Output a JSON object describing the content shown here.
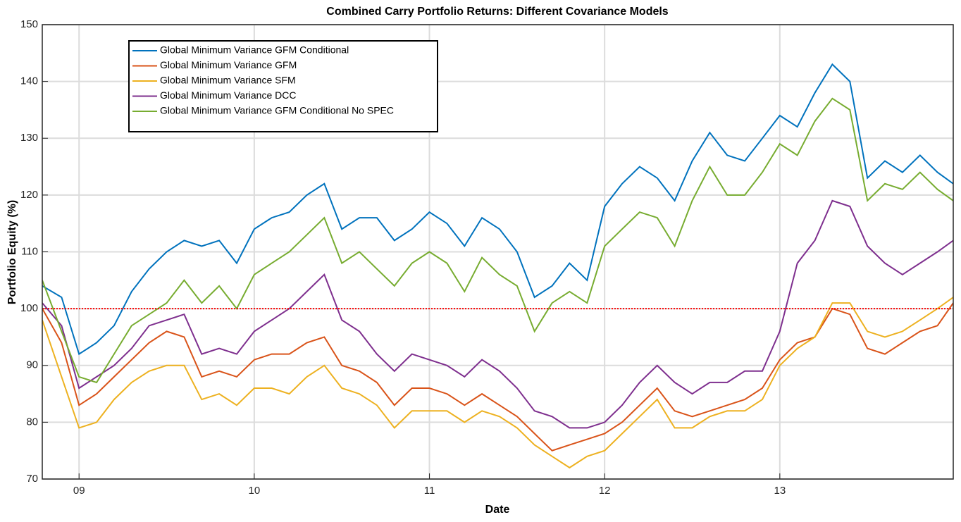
{
  "chart_data": {
    "type": "line",
    "title": "Combined Carry Portfolio Returns: Different Covariance Models",
    "x_label": "Date",
    "y_label": "Portfolio Equity (%)",
    "x": [
      8.79,
      8.9,
      9.0,
      9.1,
      9.2,
      9.3,
      9.4,
      9.5,
      9.6,
      9.7,
      9.8,
      9.9,
      10.0,
      10.1,
      10.2,
      10.3,
      10.4,
      10.5,
      10.6,
      10.7,
      10.8,
      10.9,
      11.0,
      11.1,
      11.2,
      11.3,
      11.4,
      11.5,
      11.6,
      11.7,
      11.8,
      11.9,
      12.0,
      12.1,
      12.2,
      12.3,
      12.4,
      12.5,
      12.6,
      12.7,
      12.8,
      12.9,
      13.0,
      13.1,
      13.2,
      13.3,
      13.4,
      13.5,
      13.6,
      13.7,
      13.8,
      13.9,
      13.99
    ],
    "series": [
      {
        "name": "Global Minimum Variance GFM Conditional",
        "color": "#0072bd",
        "values": [
          104,
          102,
          92,
          94,
          97,
          103,
          107,
          110,
          112,
          111,
          112,
          108,
          114,
          116,
          117,
          120,
          122,
          114,
          116,
          116,
          112,
          114,
          117,
          115,
          111,
          116,
          114,
          110,
          102,
          104,
          108,
          105,
          118,
          122,
          125,
          123,
          119,
          126,
          131,
          127,
          126,
          130,
          134,
          132,
          138,
          143,
          140,
          123,
          126,
          124,
          127,
          124,
          122
        ]
      },
      {
        "name": "Global Minimum Variance GFM",
        "color": "#d95319",
        "values": [
          100,
          94,
          83,
          85,
          88,
          91,
          94,
          96,
          95,
          88,
          89,
          88,
          91,
          92,
          92,
          94,
          95,
          90,
          89,
          87,
          83,
          86,
          86,
          85,
          83,
          85,
          83,
          81,
          78,
          75,
          76,
          77,
          78,
          80,
          83,
          86,
          82,
          81,
          82,
          83,
          84,
          86,
          91,
          94,
          95,
          100,
          99,
          93,
          92,
          94,
          96,
          97,
          101
        ]
      },
      {
        "name": "Global Minimum Variance SFM",
        "color": "#edb120",
        "values": [
          98,
          88,
          79,
          80,
          84,
          87,
          89,
          90,
          90,
          84,
          85,
          83,
          86,
          86,
          85,
          88,
          90,
          86,
          85,
          83,
          79,
          82,
          82,
          82,
          80,
          82,
          81,
          79,
          76,
          74,
          72,
          74,
          75,
          78,
          81,
          84,
          79,
          79,
          81,
          82,
          82,
          84,
          90,
          93,
          95,
          101,
          101,
          96,
          95,
          96,
          98,
          100,
          102
        ]
      },
      {
        "name": "Global Minimum Variance DCC",
        "color": "#7e2f8e",
        "values": [
          101,
          97,
          86,
          88,
          90,
          93,
          97,
          98,
          99,
          92,
          93,
          92,
          96,
          98,
          100,
          103,
          106,
          98,
          96,
          92,
          89,
          92,
          91,
          90,
          88,
          91,
          89,
          86,
          82,
          81,
          79,
          79,
          80,
          83,
          87,
          90,
          87,
          85,
          87,
          87,
          89,
          89,
          96,
          108,
          112,
          119,
          118,
          111,
          108,
          106,
          108,
          110,
          112
        ]
      },
      {
        "name": "Global Minimum Variance GFM Conditional No SPEC",
        "color": "#77ac30",
        "values": [
          105,
          96,
          88,
          87,
          92,
          97,
          99,
          101,
          105,
          101,
          104,
          100,
          106,
          108,
          110,
          113,
          116,
          108,
          110,
          107,
          104,
          108,
          110,
          108,
          103,
          109,
          106,
          104,
          96,
          101,
          103,
          101,
          111,
          114,
          117,
          116,
          111,
          119,
          125,
          120,
          120,
          124,
          129,
          127,
          133,
          137,
          135,
          119,
          122,
          121,
          124,
          121,
          119
        ]
      }
    ],
    "hline": {
      "value": 100,
      "color": "#ff0000"
    },
    "xlim": [
      8.79,
      13.99
    ],
    "xticks": [
      {
        "value": 9,
        "label": "09"
      },
      10,
      11,
      12,
      13
    ],
    "ylim": [
      70,
      150
    ],
    "yticks": [
      70,
      80,
      90,
      100,
      110,
      120,
      130,
      140,
      150
    ],
    "grid": true,
    "legend": "upper left"
  }
}
